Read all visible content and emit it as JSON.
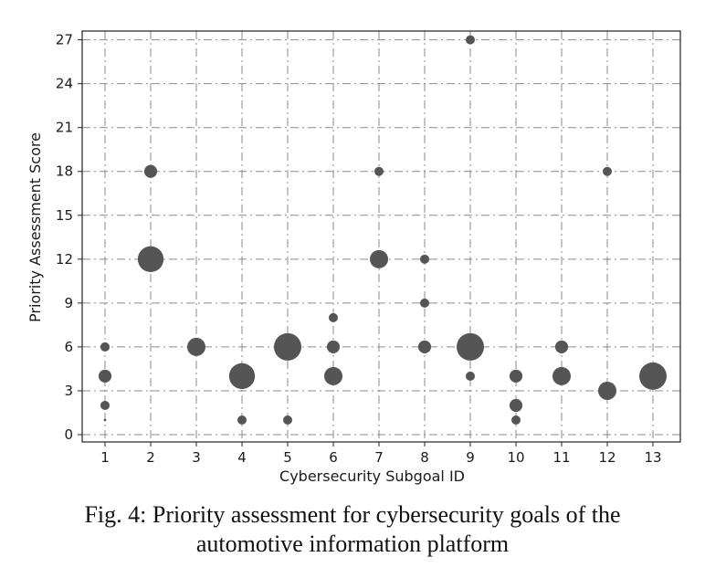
{
  "chart_data": {
    "type": "scatter",
    "xlabel": "Cybersecurity Subgoal ID",
    "ylabel": "Priority Assessment Score",
    "x_ticks": [
      1,
      2,
      3,
      4,
      5,
      6,
      7,
      8,
      9,
      10,
      11,
      12,
      13
    ],
    "y_ticks": [
      0,
      3,
      6,
      9,
      12,
      15,
      18,
      21,
      24,
      27
    ],
    "xlim": [
      0.5,
      13.6
    ],
    "ylim": [
      -0.5,
      27.6
    ],
    "grid": true,
    "point_color": "#555555",
    "points": [
      {
        "x": 1,
        "y": 1,
        "count": 0
      },
      {
        "x": 1,
        "y": 2,
        "count": 1
      },
      {
        "x": 1,
        "y": 4,
        "count": 2
      },
      {
        "x": 1,
        "y": 6,
        "count": 1
      },
      {
        "x": 2,
        "y": 12,
        "count": 8
      },
      {
        "x": 2,
        "y": 18,
        "count": 2
      },
      {
        "x": 3,
        "y": 6,
        "count": 4
      },
      {
        "x": 4,
        "y": 1,
        "count": 1
      },
      {
        "x": 4,
        "y": 4,
        "count": 8
      },
      {
        "x": 5,
        "y": 1,
        "count": 1
      },
      {
        "x": 5,
        "y": 6,
        "count": 9
      },
      {
        "x": 6,
        "y": 4,
        "count": 4
      },
      {
        "x": 6,
        "y": 6,
        "count": 2
      },
      {
        "x": 6,
        "y": 8,
        "count": 1
      },
      {
        "x": 7,
        "y": 12,
        "count": 4
      },
      {
        "x": 7,
        "y": 18,
        "count": 1
      },
      {
        "x": 8,
        "y": 6,
        "count": 2
      },
      {
        "x": 8,
        "y": 9,
        "count": 1
      },
      {
        "x": 8,
        "y": 12,
        "count": 1
      },
      {
        "x": 9,
        "y": 4,
        "count": 1
      },
      {
        "x": 9,
        "y": 6,
        "count": 9
      },
      {
        "x": 9,
        "y": 27,
        "count": 1
      },
      {
        "x": 10,
        "y": 1,
        "count": 1
      },
      {
        "x": 10,
        "y": 2,
        "count": 2
      },
      {
        "x": 10,
        "y": 4,
        "count": 2
      },
      {
        "x": 11,
        "y": 4,
        "count": 4
      },
      {
        "x": 11,
        "y": 6,
        "count": 2
      },
      {
        "x": 12,
        "y": 3,
        "count": 4
      },
      {
        "x": 12,
        "y": 18,
        "count": 1
      },
      {
        "x": 13,
        "y": 4,
        "count": 9
      }
    ]
  },
  "caption": {
    "line1": "Fig. 4: Priority assessment for cybersecurity goals of the",
    "line2": "automotive information platform"
  }
}
